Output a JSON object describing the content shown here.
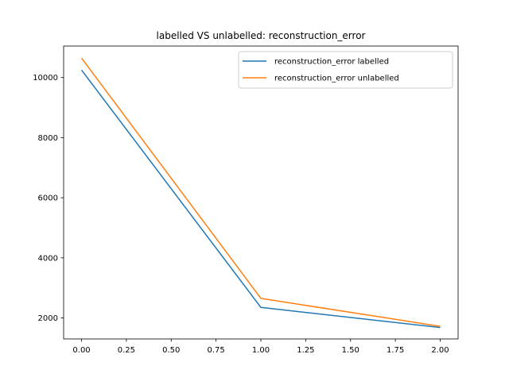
{
  "chart_data": {
    "type": "line",
    "title": "labelled VS unlabelled: reconstruction_error",
    "xlabel": "",
    "ylabel": "",
    "xlim": [
      -0.1,
      2.1
    ],
    "ylim": [
      1300,
      11050
    ],
    "x_ticks": [
      0.0,
      0.25,
      0.5,
      0.75,
      1.0,
      1.25,
      1.5,
      1.75,
      2.0
    ],
    "x_tick_labels": [
      "0.00",
      "0.25",
      "0.50",
      "0.75",
      "1.00",
      "1.25",
      "1.50",
      "1.75",
      "2.00"
    ],
    "y_ticks": [
      2000,
      4000,
      6000,
      8000,
      10000
    ],
    "y_tick_labels": [
      "2000",
      "4000",
      "6000",
      "8000",
      "10000"
    ],
    "grid": false,
    "legend_position": "top-right",
    "series": [
      {
        "name": "reconstruction_error labelled",
        "color": "#1f77b4",
        "x": [
          0,
          1,
          2
        ],
        "values": [
          10250,
          2350,
          1680
        ]
      },
      {
        "name": "reconstruction_error unlabelled",
        "color": "#ff7f0e",
        "x": [
          0,
          1,
          2
        ],
        "values": [
          10650,
          2650,
          1720
        ]
      }
    ]
  }
}
